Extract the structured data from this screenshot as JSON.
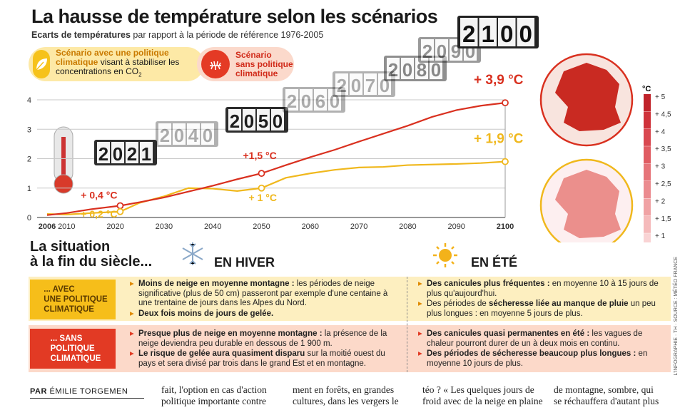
{
  "header": {
    "title": "La hausse de température selon les scénarios",
    "subtitle_bold": "Ecarts de températures",
    "subtitle_rest": " par rapport à la période de référence 1976-2005"
  },
  "legend": {
    "policy_bold": "Scénario avec une politique climatique",
    "policy_rest": " visant à stabiliser les concentrations en CO",
    "policy_sub": "2",
    "nopolicy_l1": "Scénario",
    "nopolicy_l2": "sans politique",
    "nopolicy_l3": "climatique"
  },
  "colors": {
    "policy": "#f0b81d",
    "nopolicy": "#d9301f",
    "band_y": "#fdefc0",
    "band_r": "#fcd9c9"
  },
  "chart_data": {
    "type": "line",
    "title": "La hausse de température selon les scénarios",
    "ylabel": "°C",
    "ylim": [
      0,
      4
    ],
    "xlim": [
      2006,
      2100
    ],
    "yticks": [
      "0",
      "1",
      "2",
      "3",
      "4"
    ],
    "xticks": [
      "2006",
      "2010",
      "2020",
      "2030",
      "2040",
      "2050",
      "2060",
      "2070",
      "2080",
      "2090",
      "2100"
    ],
    "series": [
      {
        "name": "Scénario sans politique climatique",
        "x": [
          2006,
          2010,
          2015,
          2021,
          2025,
          2030,
          2035,
          2040,
          2045,
          2050,
          2055,
          2060,
          2065,
          2070,
          2075,
          2080,
          2085,
          2090,
          2095,
          2100
        ],
        "y": [
          0.08,
          0.15,
          0.28,
          0.4,
          0.52,
          0.68,
          0.88,
          1.08,
          1.3,
          1.5,
          1.78,
          2.05,
          2.3,
          2.58,
          2.85,
          3.12,
          3.42,
          3.65,
          3.8,
          3.9
        ]
      },
      {
        "name": "Scénario avec une politique climatique",
        "x": [
          2006,
          2010,
          2015,
          2021,
          2025,
          2030,
          2035,
          2040,
          2045,
          2050,
          2055,
          2060,
          2065,
          2070,
          2075,
          2080,
          2085,
          2090,
          2095,
          2100
        ],
        "y": [
          0.12,
          0.1,
          0.15,
          0.2,
          0.5,
          0.72,
          1.0,
          0.98,
          0.9,
          1.0,
          1.35,
          1.5,
          1.62,
          1.7,
          1.72,
          1.78,
          1.8,
          1.82,
          1.85,
          1.9
        ]
      }
    ],
    "annotations": [
      {
        "year": 2021,
        "series": 0,
        "label": "+ 0,4 °C"
      },
      {
        "year": 2021,
        "series": 1,
        "label": "+ 0,2 °C"
      },
      {
        "year": 2050,
        "series": 0,
        "label": "+1,5 °C"
      },
      {
        "year": 2050,
        "series": 1,
        "label": "+ 1 °C"
      },
      {
        "year": 2100,
        "series": 0,
        "label": "+ 3,9 °C"
      },
      {
        "year": 2100,
        "series": 1,
        "label": "+ 1,9 °C"
      }
    ],
    "counters": [
      "2021",
      "2040",
      "2050",
      "2060",
      "2070",
      "2080",
      "2090",
      "2100"
    ],
    "scale_unit": "°C",
    "scale_labels": [
      "+ 5",
      "+ 4,5",
      "+ 4",
      "+ 3,5",
      "+ 3",
      "+ 2,5",
      "+ 2",
      "+ 1,5",
      "+ 1"
    ]
  },
  "situation": {
    "title_l1": "La situation",
    "title_l2": "à la fin du siècle...",
    "winter": "EN HIVER",
    "summer": "EN ÉTÉ",
    "tag_policy_l1": "... AVEC",
    "tag_policy_l2": "UNE POLITIQUE",
    "tag_policy_l3": "CLIMATIQUE",
    "tag_nopolicy_l1": "... SANS",
    "tag_nopolicy_l2": "POLITIQUE",
    "tag_nopolicy_l3": "CLIMATIQUE",
    "p_winter_1_b": "Moins de neige en moyenne montagne :",
    "p_winter_1": " les périodes de neige significative (plus de 50 cm) passeront par exemple d'une centaine à une trentaine de jours dans les Alpes du Nord.",
    "p_winter_2_b": "Deux fois moins de jours de gelée.",
    "p_summer_1_b": "Des canicules plus fréquentes :",
    "p_summer_1": " en moyenne 10 à 15 jours de plus qu'aujourd'hui.",
    "p_summer_2": "Des périodes de ",
    "p_summer_2_b": "sécheresse liée au manque de pluie",
    "p_summer_2_end": " un peu plus longues : en moyenne 5 jours de plus.",
    "n_winter_1_b": "Presque plus de neige en moyenne montagne :",
    "n_winter_1": " la présence de la neige deviendra peu durable en dessous de 1 900 m.",
    "n_winter_2_b": "Le risque de gelée aura quasiment disparu",
    "n_winter_2": " sur la moitié ouest du pays et sera divisé par trois dans le grand Est et en montagne.",
    "n_summer_1_b": "Des canicules quasi permanentes en été :",
    "n_summer_1": " les vagues de chaleur pourront durer de un à deux mois en continu.",
    "n_summer_2_b": "Des périodes de sécheresse beaucoup plus longues :",
    "n_summer_2": " en moyenne 10 jours de plus."
  },
  "footer": {
    "credit": "L'INFOGRAPHIE · TH · SOURCE : MÉTÉO FRANCE",
    "by": "PAR",
    "author": " ÉMILIE TORGEMEN",
    "col1_l1": "fait, l'option en cas d'action",
    "col1_l2": "politique importante contre",
    "col2_l1": "ment en forêts, en grandes",
    "col2_l2": "cultures, dans les vergers le",
    "col3_l1": "téo ? « Les quelques jours de",
    "col3_l2": "froid avec de la neige en plaine",
    "col4_l1": "de montagne, sombre, qui",
    "col4_l2": "se réchauffera d'autant plus"
  }
}
